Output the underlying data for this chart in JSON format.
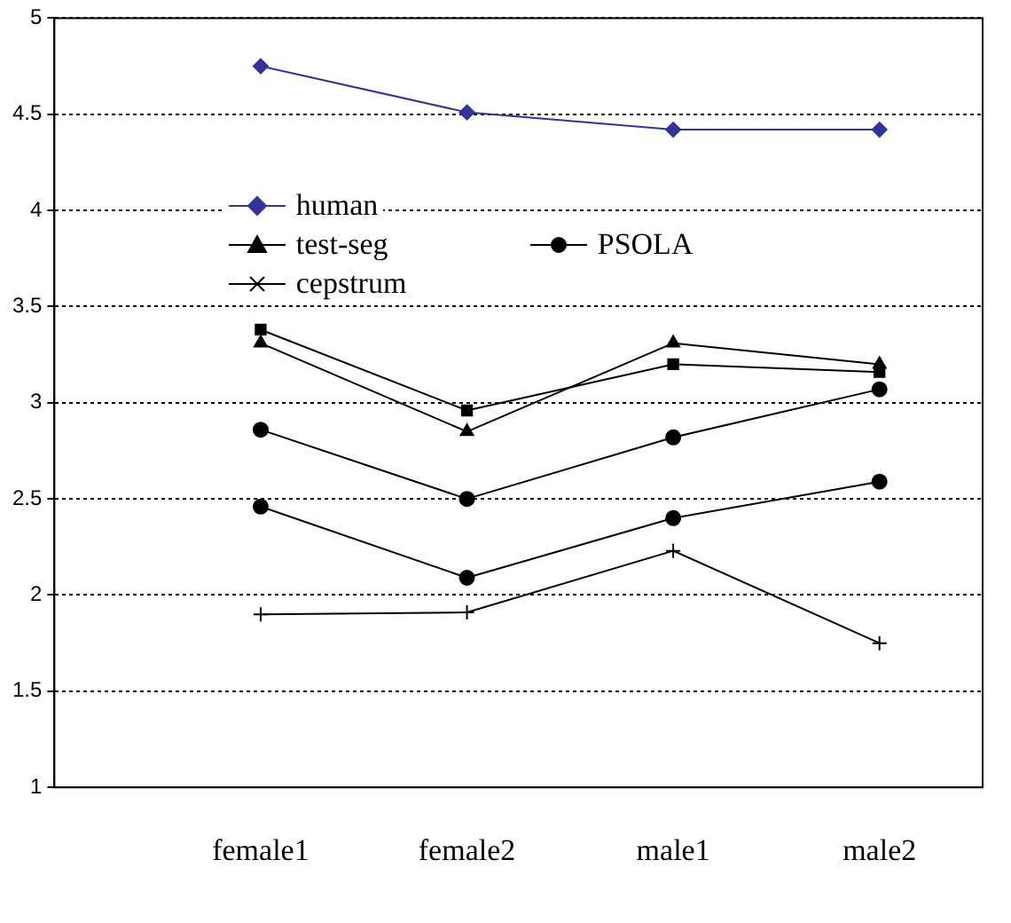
{
  "chart_data": {
    "type": "line",
    "categories": [
      "female1",
      "female2",
      "male1",
      "male2"
    ],
    "ylim": [
      1,
      5
    ],
    "yticks": [
      1,
      1.5,
      2,
      2.5,
      3,
      3.5,
      4,
      4.5,
      5
    ],
    "grid": "y",
    "legend": "top",
    "line_style": "solid",
    "series": [
      {
        "name": "human",
        "color": "#333399",
        "marker": "diamond",
        "values": [
          4.75,
          4.51,
          4.42,
          4.42
        ]
      },
      {
        "color": "#000000",
        "marker": "square",
        "values": [
          3.38,
          2.96,
          3.2,
          3.16
        ]
      },
      {
        "name": "test-seg",
        "color": "#000000",
        "marker": "triangle",
        "values": [
          3.31,
          2.85,
          3.31,
          3.2
        ]
      },
      {
        "name": "PSOLA",
        "color": "#000000",
        "marker": "circle",
        "values": [
          2.46,
          2.09,
          2.4,
          2.59
        ]
      },
      {
        "name": "cepstrum",
        "color": "#000000",
        "marker": "cross",
        "values": [
          1.9,
          1.91,
          2.23,
          1.75
        ]
      },
      {
        "color": "#000000",
        "marker": "circle",
        "values": [
          2.86,
          2.5,
          2.82,
          3.07
        ]
      }
    ]
  }
}
